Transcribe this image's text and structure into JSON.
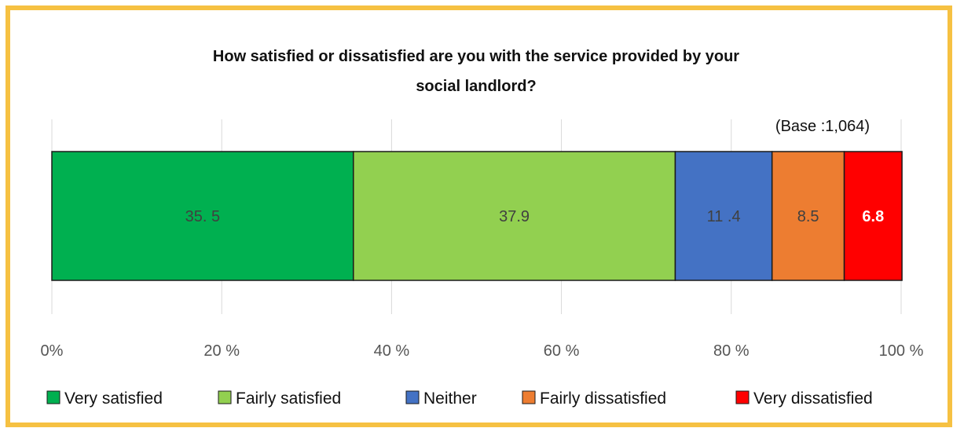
{
  "chart_data": {
    "type": "bar",
    "orientation": "horizontal-stacked",
    "title_line1": "How satisfied or dissatisfied are you with the service provided by your",
    "title_line2": "social landlord?",
    "base_note": "(Base :1,064)",
    "xlim": [
      0,
      100
    ],
    "x_ticks": [
      "0%",
      "20 %",
      "40 %",
      "60 %",
      "80 %",
      "100 %"
    ],
    "grid": "vertical",
    "legend_position": "bottom",
    "series": [
      {
        "name": "Very satisfied",
        "value": 35.5,
        "label": "35. 5",
        "color": "#00b050",
        "label_color": "#404040",
        "label_bold": false
      },
      {
        "name": "Fairly satisfied",
        "value": 37.9,
        "label": "37.9",
        "color": "#92d050",
        "label_color": "#404040",
        "label_bold": false
      },
      {
        "name": "Neither",
        "value": 11.4,
        "label": "11 .4",
        "color": "#4472c4",
        "label_color": "#404040",
        "label_bold": false
      },
      {
        "name": "Fairly dissatisfied",
        "value": 8.5,
        "label": "8.5",
        "color": "#ed7d31",
        "label_color": "#404040",
        "label_bold": false
      },
      {
        "name": "Very dissatisfied",
        "value": 6.8,
        "label": "6.8",
        "color": "#ff0000",
        "label_color": "#ffffff",
        "label_bold": true
      }
    ]
  }
}
